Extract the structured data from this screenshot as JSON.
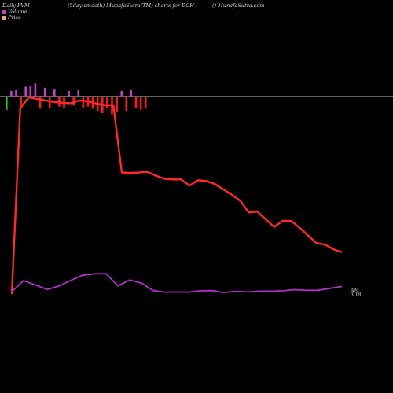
{
  "header": {
    "left": "Daily PVM",
    "center": "(5day smooth) MunafaSutra(TM) charts for DCH",
    "right": "() MunafaSutra.com"
  },
  "legend": {
    "volume_label": "Volume",
    "price_label": "Price",
    "volume_color": "#c040c0",
    "price_color": "#e8a070"
  },
  "end_labels": {
    "top": "AM",
    "bottom": "3.18"
  },
  "colors": {
    "background": "#000000",
    "baseline": "#c8c8c8",
    "price_line": "#ff2a2a",
    "volume_line": "#b030c8",
    "bar_up": "#c040c0",
    "bar_down": "#ff1a1a",
    "bar_first": "#22cc22"
  },
  "chart_data": {
    "type": "line",
    "title": "",
    "xlabel": "",
    "ylabel": "",
    "series": [
      {
        "name": "Price",
        "values": [
          3.18,
          15.3,
          16.0,
          15.9,
          15.8,
          15.7,
          15.65,
          15.62,
          15.8,
          15.75,
          15.6,
          15.5,
          15.5,
          11.1,
          11.08,
          11.1,
          11.15,
          10.9,
          10.7,
          10.65,
          10.65,
          10.25,
          10.6,
          10.55,
          10.35,
          10.0,
          9.65,
          9.25,
          8.5,
          8.55,
          8.05,
          7.55,
          7.95,
          7.95,
          7.5,
          7.0,
          6.5,
          6.4,
          6.1,
          5.9
        ]
      },
      {
        "name": "Volume",
        "values": [
          0.13,
          0.71,
          0.48,
          0.24,
          0.42,
          0.72,
          0.99,
          1.07,
          1.07,
          0.43,
          0.74,
          0.58,
          0.18,
          0.1,
          0.11,
          0.1,
          0.17,
          0.18,
          0.08,
          0.14,
          0.11,
          0.15,
          0.15,
          0.17,
          0.23,
          0.19,
          0.2,
          0.3,
          0.4
        ]
      }
    ],
    "histogram": [
      -1.2,
      0.5,
      0.6,
      -0.8,
      0.9,
      1.0,
      1.2,
      -1.1,
      0.8,
      -1.0,
      0.7,
      -0.9,
      -1.0,
      0.5,
      -0.8,
      0.6,
      -1.0,
      -0.9,
      -1.1,
      -1.3,
      -1.5,
      -1.1,
      -1.6,
      -1.4,
      0.5,
      -1.3,
      0.6,
      -1.0,
      -1.2,
      -1.1
    ]
  }
}
